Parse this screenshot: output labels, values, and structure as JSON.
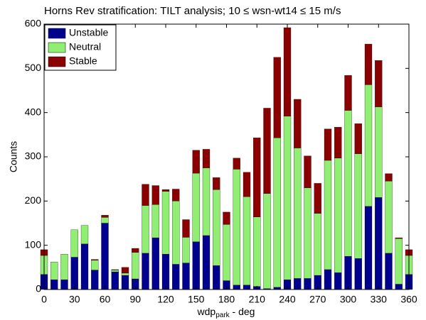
{
  "chart_data": {
    "type": "stacked_bar",
    "title": "Horns Rev stratification: TILT analysis; 10 ≤ wsn-wt14 ≤ 15 m/s",
    "x_label": "wdp",
    "x_label_subscript": "park",
    "x_label_suffix": " - deg",
    "y_label": "Counts",
    "x": [
      0,
      10,
      20,
      30,
      40,
      50,
      60,
      70,
      80,
      90,
      100,
      110,
      120,
      130,
      140,
      150,
      160,
      170,
      180,
      190,
      200,
      210,
      220,
      230,
      240,
      250,
      260,
      270,
      280,
      290,
      300,
      310,
      320,
      330,
      340,
      350,
      360
    ],
    "series": [
      {
        "name": "Unstable",
        "color": "#00008f",
        "values": [
          34,
          22,
          22,
          73,
          103,
          44,
          150,
          40,
          32,
          24,
          82,
          117,
          80,
          57,
          60,
          108,
          122,
          54,
          20,
          10,
          10,
          7,
          2,
          5,
          22,
          25,
          25,
          32,
          45,
          38,
          75,
          70,
          188,
          208,
          82,
          12,
          34
        ]
      },
      {
        "name": "Neutral",
        "color": "#90ee72",
        "values": [
          43,
          40,
          58,
          62,
          42,
          22,
          13,
          4,
          5,
          60,
          108,
          75,
          142,
          143,
          58,
          155,
          153,
          172,
          127,
          262,
          200,
          157,
          215,
          338,
          370,
          295,
          205,
          140,
          247,
          259,
          330,
          237,
          275,
          205,
          163,
          103,
          43
        ]
      },
      {
        "name": "Stable",
        "color": "#8b0000",
        "values": [
          13,
          0,
          0,
          0,
          0,
          2,
          5,
          1,
          13,
          9,
          48,
          43,
          4,
          27,
          40,
          52,
          42,
          27,
          28,
          25,
          55,
          179,
          193,
          182,
          200,
          110,
          72,
          68,
          71,
          70,
          79,
          68,
          92,
          105,
          17,
          2,
          13
        ]
      }
    ],
    "xlim": [
      0,
      360
    ],
    "xticks": [
      0,
      30,
      60,
      90,
      120,
      150,
      180,
      210,
      240,
      270,
      300,
      330,
      360
    ],
    "ylim": [
      0,
      600
    ],
    "yticks": [
      0,
      100,
      200,
      300,
      400,
      500,
      600
    ],
    "legend": "upper left"
  }
}
